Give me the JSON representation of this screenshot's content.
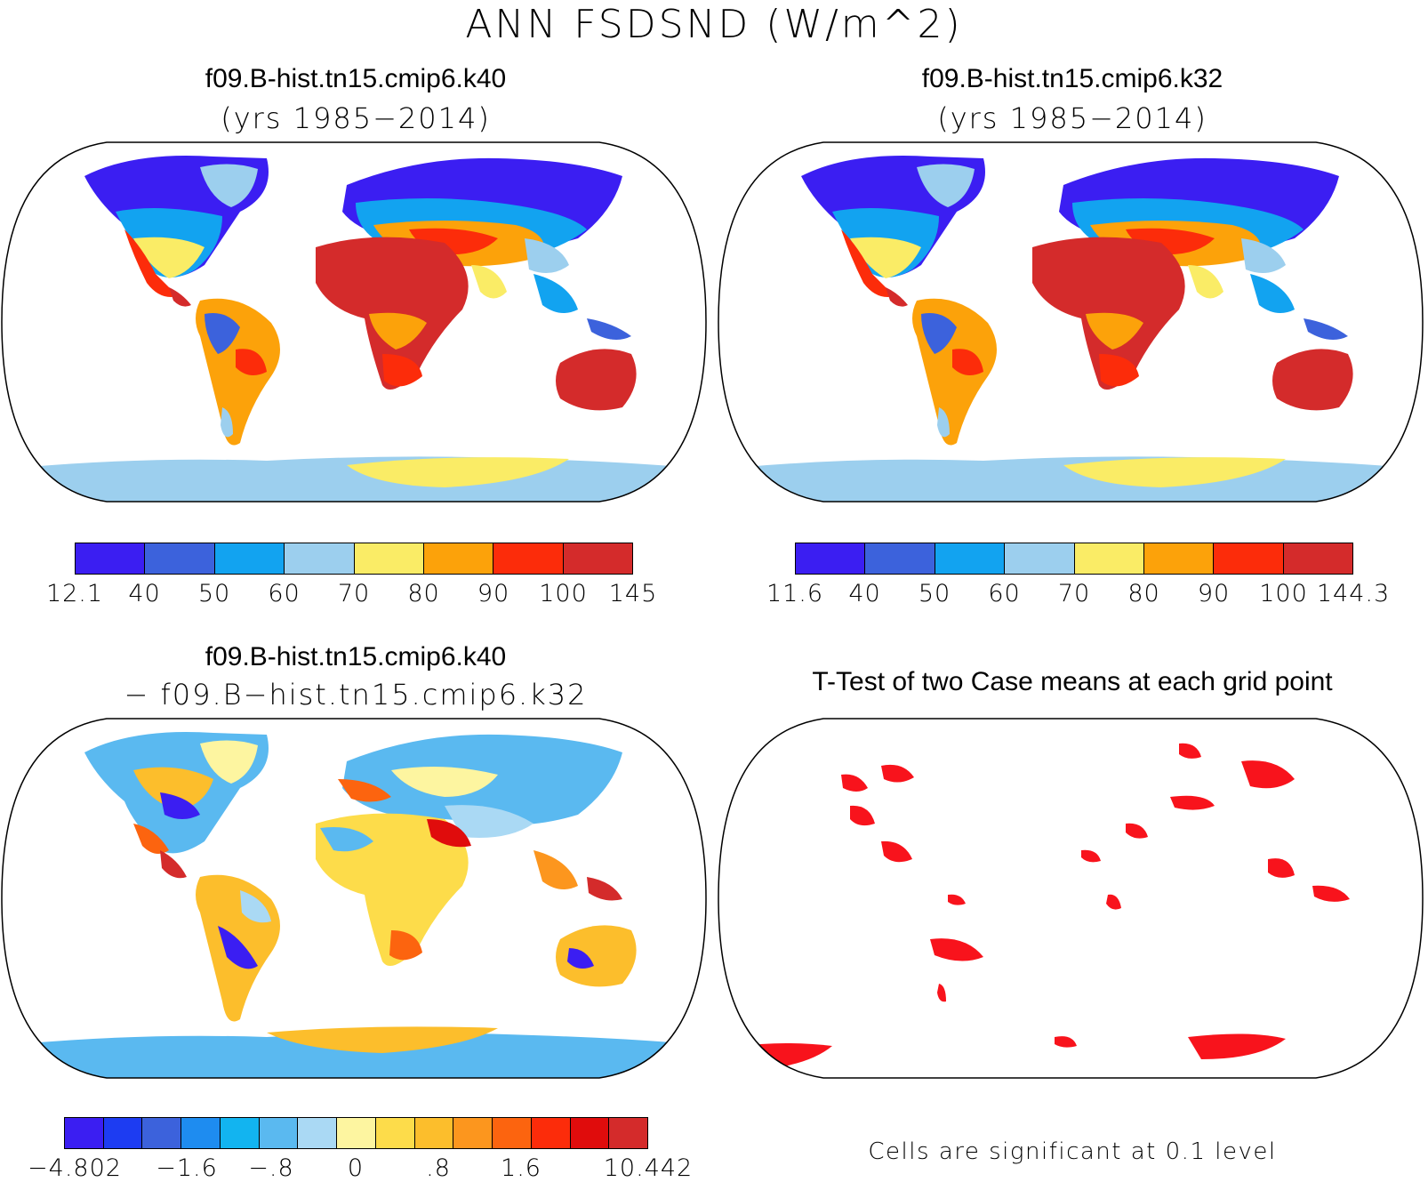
{
  "figure": {
    "title": "ANN FSDSND (W/m^2)"
  },
  "panels": [
    {
      "title": "f09.B-hist.tn15.cmip6.k40",
      "subtitle": "(yrs 1985−2014)",
      "colorbar": {
        "colors": [
          "#3b1ef2",
          "#3c62dc",
          "#12a3f0",
          "#9ccfee",
          "#faec66",
          "#fca20a",
          "#fc2c0a",
          "#d42b2b"
        ],
        "labels": [
          "12.1",
          "40",
          "50",
          "60",
          "70",
          "80",
          "90",
          "100",
          "145"
        ]
      }
    },
    {
      "title": "f09.B-hist.tn15.cmip6.k32",
      "subtitle": "(yrs 1985−2014)",
      "colorbar": {
        "colors": [
          "#3b1ef2",
          "#3c62dc",
          "#12a3f0",
          "#9ccfee",
          "#faec66",
          "#fca20a",
          "#fc2c0a",
          "#d42b2b"
        ],
        "labels": [
          "11.6",
          "40",
          "50",
          "60",
          "70",
          "80",
          "90",
          "100",
          "144.3"
        ]
      }
    },
    {
      "title": "f09.B-hist.tn15.cmip6.k40",
      "subtitle": "− f09.B−hist.tn15.cmip6.k32",
      "colorbar": {
        "colors": [
          "#3b1ef2",
          "#1d3cf2",
          "#3c62dc",
          "#1e8cf0",
          "#12b4f0",
          "#5ab9f0",
          "#aad9f4",
          "#fdf5a0",
          "#fddc4a",
          "#fcbe2c",
          "#fc961e",
          "#fc640f",
          "#fc2c0a",
          "#e00c0c",
          "#d42b2b"
        ],
        "labels": [
          "−4.802",
          "−1.6",
          "−.8",
          "0",
          ".8",
          "1.6",
          "10.442"
        ]
      }
    },
    {
      "title": "T-Test of two Case means at each grid point",
      "note": "Cells are significant at 0.1 level"
    }
  ]
}
